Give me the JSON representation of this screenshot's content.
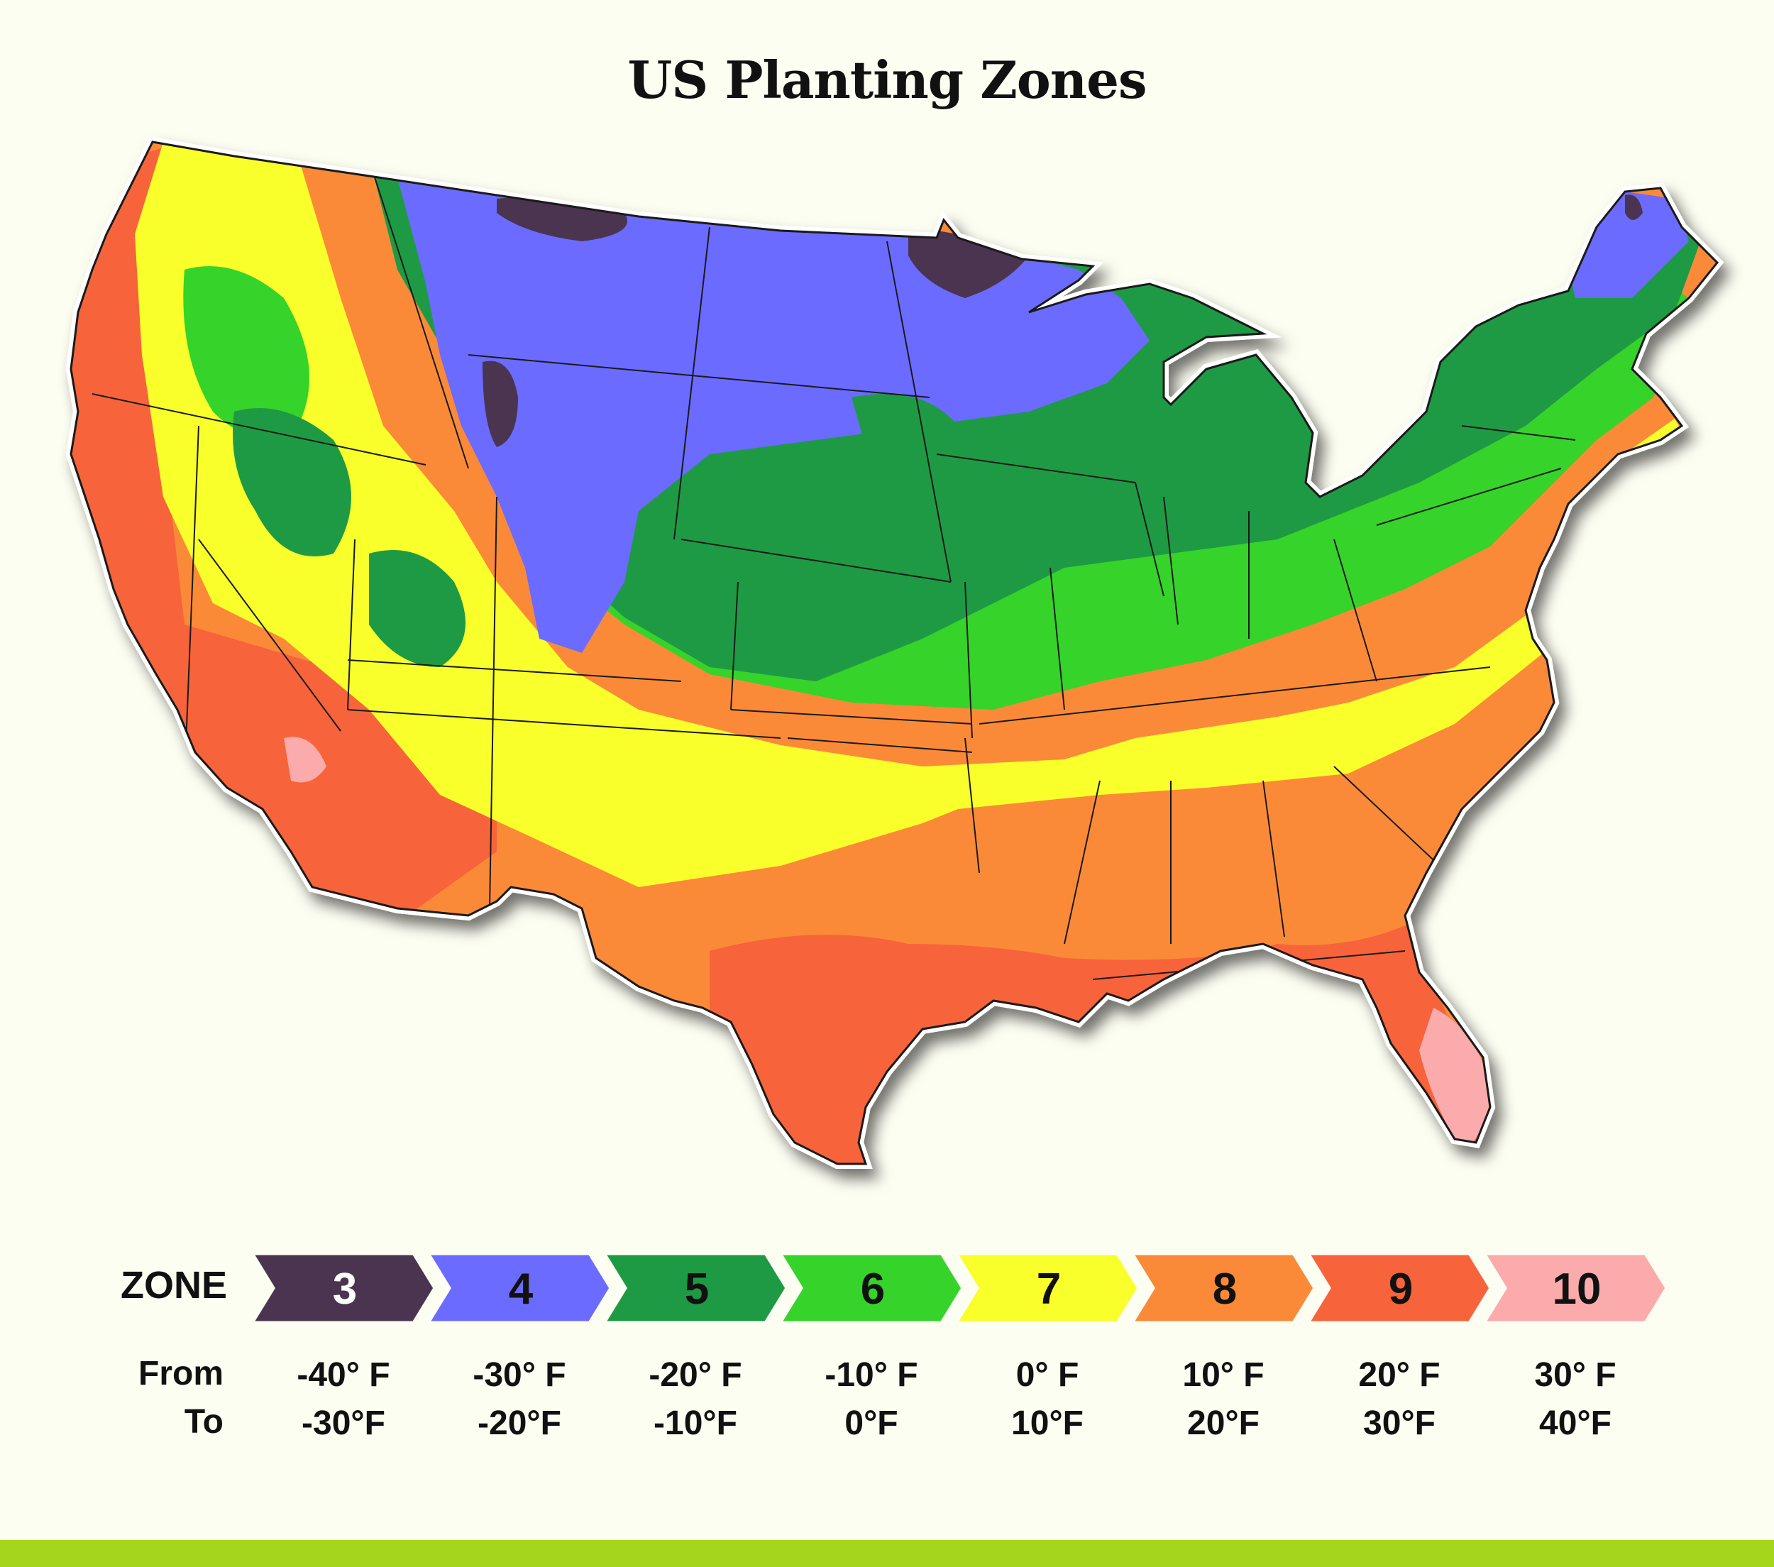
{
  "title": "US Planting Zones",
  "colors": {
    "background": "#fdfef2",
    "bottom_bar": "#a6d61c",
    "state_border": "#1a1a1a"
  },
  "legend": {
    "zone_label": "ZONE",
    "from_label": "From",
    "to_label": "To",
    "zones": [
      {
        "zone": "3",
        "color": "#4b3450",
        "text_color": "#ffffff",
        "from": "-40° F",
        "to": "-30°F"
      },
      {
        "zone": "4",
        "color": "#6b6bff",
        "text_color": "#111111",
        "from": "-30° F",
        "to": "-20°F"
      },
      {
        "zone": "5",
        "color": "#1e9a44",
        "text_color": "#111111",
        "from": "-20° F",
        "to": "-10°F"
      },
      {
        "zone": "6",
        "color": "#36d32a",
        "text_color": "#111111",
        "from": "-10° F",
        "to": "0°F"
      },
      {
        "zone": "7",
        "color": "#f9ff2a",
        "text_color": "#111111",
        "from": "0° F",
        "to": "10°F"
      },
      {
        "zone": "8",
        "color": "#fb8a38",
        "text_color": "#111111",
        "from": "10° F",
        "to": "20°F"
      },
      {
        "zone": "9",
        "color": "#f7633a",
        "text_color": "#111111",
        "from": "20° F",
        "to": "30°F"
      },
      {
        "zone": "10",
        "color": "#fbabab",
        "text_color": "#111111",
        "from": "30° F",
        "to": "40°F"
      }
    ]
  }
}
